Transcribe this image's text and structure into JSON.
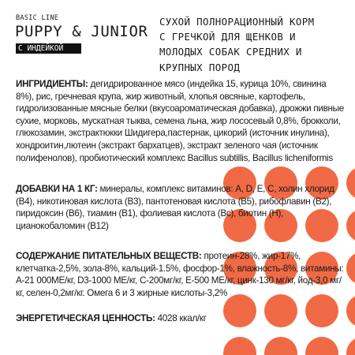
{
  "brand": {
    "line": "BASIC LINE",
    "product": "PUPPY & JUNIOR",
    "variant": "С ИНДЕЙКОЙ"
  },
  "headline": [
    "СУХОЙ ПОЛНОРАЦИОННЫЙ КОРМ",
    "С ГРЕЧКОЙ ДЛЯ ЩЕНКОВ И",
    "МОЛОДЫХ СОБАК СРЕДНИХ И",
    "КРУПНЫХ ПОРОД"
  ],
  "sections": {
    "ingredients": {
      "label": "ИНГРИДИЕНТЫ:",
      "text": " дегидрированное мясо (индейка 15, курица 10%, свинина 8%), рис, гречневая крупа, жир животный, хлопья овсяные, картофель, гидролизованные мясные белки (вкусоароматическая добавка), дрожжи пивные сухие, морковь, мускатная тыква, семена льна, жир лососевый 0,8%, брокколи, глюкозамин, экстрактюкки Шидигера,пастернак, цикорий (источник инулина), хондроитин,лютеин (экстракт бархатцев), экстракт зеленого чая (источник полифенолов), пробиотический комплекс Bacillus subtillis, Bacillus licheniformis"
    },
    "additives": {
      "label": "ДОБАВКИ НА 1 КГ:",
      "text": " минералы, комплекс витаминов: А, D, E, С, холин хлорид (В4), никотиновая кислота (В3), пантотеновая кислота (В5), рибофлавин (В2), пиридоксин (В6), тиамин (В1), фолиевая кислота (Вс), биотин (Н), цианокобаломин (В12)"
    },
    "nutrients": {
      "label": "СОДЕРЖАНИЕ ПИТАТЕЛЬНЫХ ВЕЩЕСТВ:",
      "text": " протеин-28%, жир-17%, клетчатка-2,5%, зола-8%, кальций-1.5%, фосфор-1%, влажность-8%, витамины: А-21 000МЕ/кг, D3-1000 МЕ/кг, С-200мг/кг, Е-500 МЕ/кг, цинк-130 мг/кг, йод-3,0 мг/кг, селен-0,2мг/кг. Омега 6 и 3 жирные кислоты-3,2%"
    },
    "energy": {
      "label": "ЭНЕРГЕТИЧЕСКАЯ ЦЕННОСТЬ:",
      "text": " 4028 ккал/кг"
    }
  },
  "decor": {
    "dot_color": "#f06a45",
    "dot_grid": {
      "columns": 4,
      "rows": 5
    }
  }
}
